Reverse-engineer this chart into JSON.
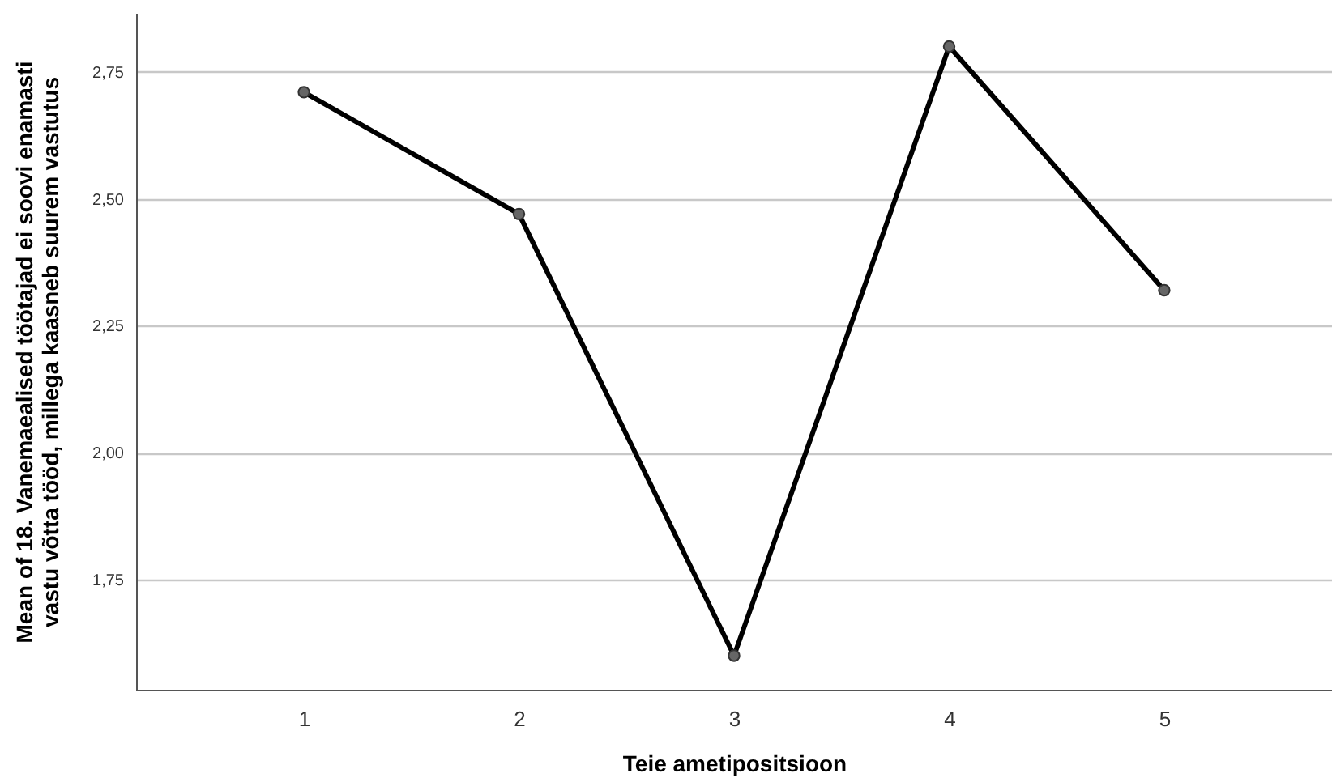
{
  "chart_data": {
    "type": "line",
    "xlabel": "Teie ametipositsioon",
    "ylabel": "Mean of 18. Vanemaealised töötajad ei soovi enamasti\nvastu võtta tööd, millega kaasneb suurem vastutus",
    "categories": [
      "1",
      "2",
      "3",
      "4",
      "5"
    ],
    "series": [
      {
        "color": "#000000",
        "values": [
          2.71,
          2.47,
          1.6,
          2.8,
          2.32
        ]
      }
    ],
    "ylim": [
      1.533,
      2.866
    ],
    "yticks": [
      {
        "value": 1.75,
        "label": "1,75"
      },
      {
        "value": 2.0,
        "label": "2,00"
      },
      {
        "value": 2.25,
        "label": "2,25"
      },
      {
        "value": 2.5,
        "label": "2,50"
      },
      {
        "value": 2.75,
        "label": "2,75"
      }
    ],
    "grid": "y",
    "marker": "circle",
    "line_style": "solid"
  }
}
